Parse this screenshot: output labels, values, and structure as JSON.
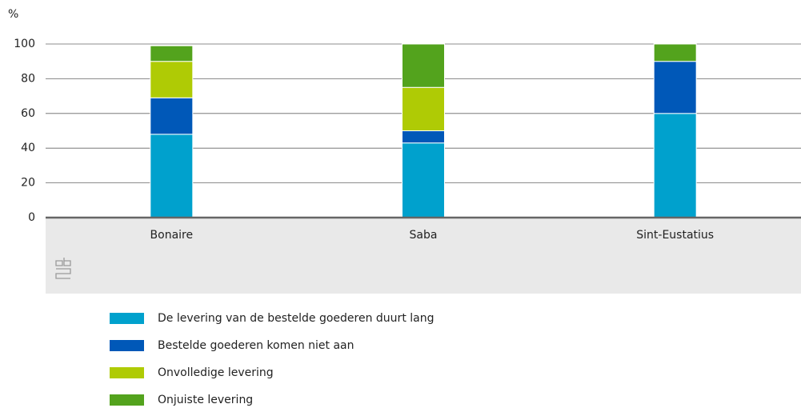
{
  "chart_data": {
    "type": "stacked_bar",
    "y_label": "%",
    "categories": [
      "Bonaire",
      "Saba",
      "Sint-Eustatius"
    ],
    "series": [
      {
        "name": "De levering van de bestelde goederen duurt lang",
        "color": "#00a1cd",
        "values": [
          48,
          43,
          60
        ]
      },
      {
        "name": "Bestelde goederen komen niet aan",
        "color": "#0058b8",
        "values": [
          21,
          7,
          30
        ]
      },
      {
        "name": "Onvolledige levering",
        "color": "#afcb05",
        "values": [
          21,
          25,
          0
        ]
      },
      {
        "name": "Onjuiste levering",
        "color": "#53a31d",
        "values": [
          9,
          25,
          10
        ]
      }
    ],
    "ylim": [
      0,
      100
    ],
    "yticks": [
      0,
      20,
      40,
      60,
      80,
      100
    ],
    "grid": true
  }
}
